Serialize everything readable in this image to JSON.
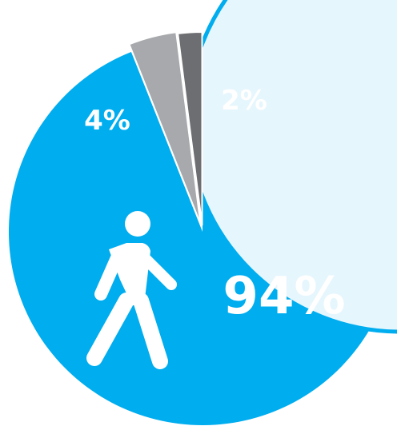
{
  "chart_data": {
    "type": "pie",
    "slices": [
      {
        "label": "94%",
        "value": 94,
        "color": "#00ADEF",
        "icon": "walking-person-icon"
      },
      {
        "label": "4%",
        "value": 4,
        "color": "#A7A9AC"
      },
      {
        "label": "2%",
        "value": 2,
        "color": "#6D6E71"
      }
    ],
    "overlay_color": "#E6F6FD",
    "overlay_border_color": "#00ADEF"
  }
}
